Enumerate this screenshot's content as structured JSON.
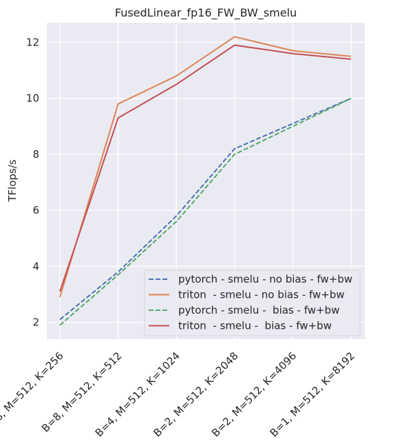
{
  "chart_data": {
    "type": "line",
    "title": "FusedLinear_fp16_FW_BW_smelu",
    "xlabel": "",
    "ylabel": "TFlops/s",
    "categories": [
      "B=8, M=512, K=256",
      "B=8, M=512, K=512",
      "B=4, M=512, K=1024",
      "B=2, M=512, K=2048",
      "B=2, M=512, K=4096",
      "B=1, M=512, K=8192"
    ],
    "ylim": [
      1.4,
      12.7
    ],
    "yticks": [
      2,
      4,
      6,
      8,
      10,
      12
    ],
    "grid": true,
    "legend_position": "lower-right",
    "series": [
      {
        "name": "pytorch - smelu - no bias - fw+bw",
        "color": "#4c72b0",
        "dash": true,
        "values": [
          2.1,
          3.8,
          5.8,
          8.2,
          9.1,
          10.0
        ]
      },
      {
        "name": "triton  - smelu - no bias - fw+bw",
        "color": "#dd8452",
        "dash": false,
        "values": [
          2.9,
          9.8,
          10.8,
          12.2,
          11.7,
          11.5
        ]
      },
      {
        "name": "pytorch - smelu -  bias - fw+bw",
        "color": "#55a868",
        "dash": true,
        "values": [
          1.9,
          3.7,
          5.6,
          8.0,
          9.0,
          10.0
        ]
      },
      {
        "name": "triton  - smelu -  bias - fw+bw",
        "color": "#c44e52",
        "dash": false,
        "values": [
          3.1,
          9.3,
          10.5,
          11.9,
          11.6,
          11.4
        ]
      }
    ],
    "colors": {
      "plot_background": "#eaeaf2",
      "grid": "#ffffff",
      "text": "#262626"
    }
  }
}
